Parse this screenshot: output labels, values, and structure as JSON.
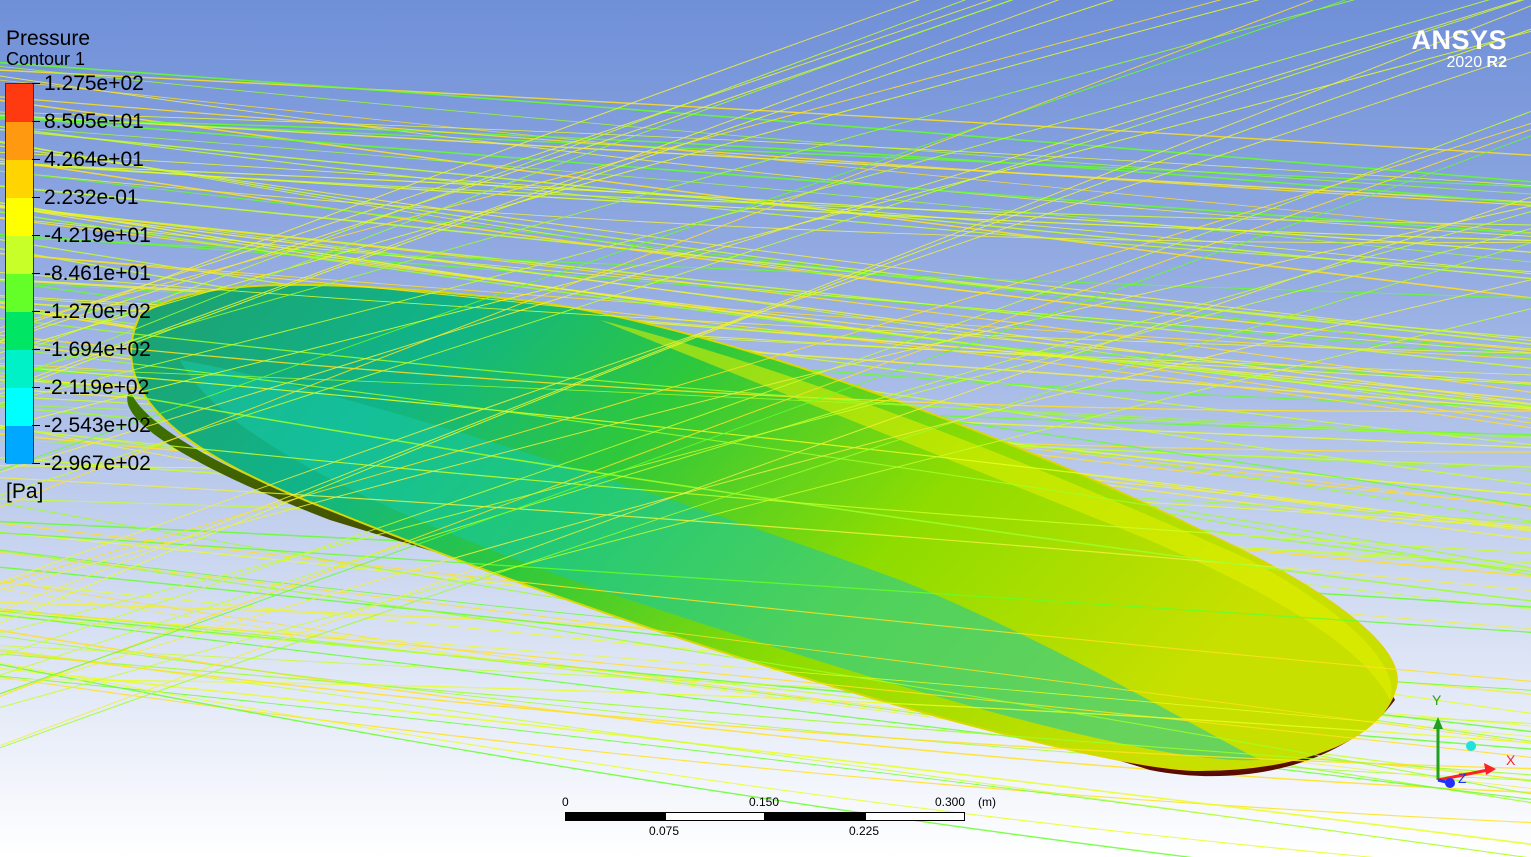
{
  "viewer": {
    "brand": "ANSYS",
    "version": "2020",
    "release": "R2"
  },
  "legend": {
    "quantity": "Pressure",
    "name": "Contour 1",
    "unit": "[Pa]",
    "ticks": [
      "1.275e+02",
      "8.505e+01",
      "4.264e+01",
      "2.232e-01",
      "-4.219e+01",
      "-8.461e+01",
      "-1.270e+02",
      "-1.694e+02",
      "-2.119e+02",
      "-2.543e+02",
      "-2.967e+02"
    ],
    "band_colors": [
      "#ff3a10",
      "#ff9a10",
      "#ffd400",
      "#ffff00",
      "#c8ff28",
      "#64ff28",
      "#00e664",
      "#00f0c8",
      "#00ffff",
      "#00a8ff",
      "#0050ff"
    ]
  },
  "scale_bar": {
    "labels_top": [
      "0",
      "0.150",
      "0.300"
    ],
    "labels_bottom": [
      "0.075",
      "0.225"
    ],
    "unit": "(m)"
  },
  "axes_triad": {
    "y": "Y",
    "x": "X",
    "z": "Z",
    "x_color": "#ff2020",
    "y_color": "#20a020",
    "z_color": "#2030ff"
  }
}
